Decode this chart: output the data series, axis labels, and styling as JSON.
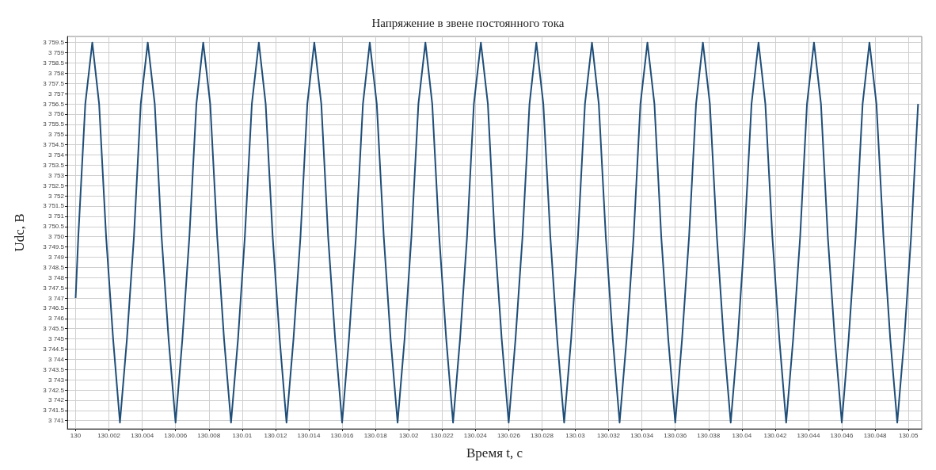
{
  "chart_data": {
    "type": "line",
    "title": "Напряжение в звене постоянного тока",
    "xlabel": "Время t, с",
    "ylabel": "Udc, В",
    "xlim": [
      129.9995,
      130.0508
    ],
    "xticks": [
      130,
      130.002,
      130.004,
      130.006,
      130.008,
      130.01,
      130.012,
      130.014,
      130.016,
      130.018,
      130.02,
      130.022,
      130.024,
      130.026,
      130.028,
      130.03,
      130.032,
      130.034,
      130.036,
      130.038,
      130.04,
      130.042,
      130.044,
      130.046,
      130.048,
      130.05
    ],
    "ylim": [
      3740.6,
      3759.8
    ],
    "yticks": [
      {
        "value": 3741,
        "label": "3 741"
      },
      {
        "value": 3741.5,
        "label": "3 741.5"
      },
      {
        "value": 3742,
        "label": "3 742"
      },
      {
        "value": 3742.5,
        "label": "3 742.5"
      },
      {
        "value": 3743,
        "label": "3 743"
      },
      {
        "value": 3743.5,
        "label": "3 743.5"
      },
      {
        "value": 3744,
        "label": "3 744"
      },
      {
        "value": 3744.5,
        "label": "3 744.5"
      },
      {
        "value": 3745,
        "label": "3 745"
      },
      {
        "value": 3745.5,
        "label": "3 745.5"
      },
      {
        "value": 3746,
        "label": "3 746"
      },
      {
        "value": 3746.5,
        "label": "3 746.5"
      },
      {
        "value": 3747,
        "label": "3 747"
      },
      {
        "value": 3747.5,
        "label": "3 747.5"
      },
      {
        "value": 3748,
        "label": "3 748"
      },
      {
        "value": 3748.5,
        "label": "3 748.5"
      },
      {
        "value": 3749,
        "label": "3 749"
      },
      {
        "value": 3749.5,
        "label": "3 749.5"
      },
      {
        "value": 3750,
        "label": "3 750"
      },
      {
        "value": 3750.5,
        "label": "3 750.5"
      },
      {
        "value": 3751,
        "label": "3 751"
      },
      {
        "value": 3751.5,
        "label": "3 751.5"
      },
      {
        "value": 3752,
        "label": "3 752"
      },
      {
        "value": 3752.5,
        "label": "3 752.5"
      },
      {
        "value": 3753,
        "label": "3 753"
      },
      {
        "value": 3753.5,
        "label": "3 753.5"
      },
      {
        "value": 3754,
        "label": "3 754"
      },
      {
        "value": 3754.5,
        "label": "3 754.5"
      },
      {
        "value": 3755,
        "label": "3 755"
      },
      {
        "value": 3755.5,
        "label": "3 755.5"
      },
      {
        "value": 3756,
        "label": "3 756"
      },
      {
        "value": 3756.5,
        "label": "3 756.5"
      },
      {
        "value": 3757,
        "label": "3 757"
      },
      {
        "value": 3757.5,
        "label": "3 757.5"
      },
      {
        "value": 3758,
        "label": "3 758"
      },
      {
        "value": 3758.5,
        "label": "3 758.5"
      },
      {
        "value": 3759,
        "label": "3 759"
      },
      {
        "value": 3759.5,
        "label": "3 759.5"
      }
    ],
    "grid": true,
    "marker": "none",
    "line_style": "solid",
    "series": [
      {
        "color": "#1f4e79",
        "x": [
          130,
          130.00016,
          130.00058,
          130.001,
          130.00141,
          130.00183,
          130.00225,
          130.00266,
          130.00308,
          130.0035,
          130.00391,
          130.00433,
          130.00475,
          130.00516,
          130.00558,
          130.006,
          130.00641,
          130.00683,
          130.00725,
          130.00766,
          130.00808,
          130.0085,
          130.00891,
          130.00933,
          130.00975,
          130.01016,
          130.01058,
          130.011,
          130.01141,
          130.01183,
          130.01225,
          130.01266,
          130.01308,
          130.0135,
          130.01391,
          130.01433,
          130.01475,
          130.01516,
          130.01558,
          130.016,
          130.01641,
          130.01683,
          130.01725,
          130.01766,
          130.01808,
          130.0185,
          130.01891,
          130.01933,
          130.01975,
          130.02016,
          130.02058,
          130.021,
          130.02141,
          130.02183,
          130.02225,
          130.02266,
          130.02308,
          130.0235,
          130.02391,
          130.02433,
          130.02475,
          130.02516,
          130.02558,
          130.026,
          130.02641,
          130.02683,
          130.02725,
          130.02766,
          130.02808,
          130.0285,
          130.02891,
          130.02933,
          130.02975,
          130.03016,
          130.03058,
          130.031,
          130.03141,
          130.03183,
          130.03225,
          130.03266,
          130.03308,
          130.0335,
          130.03391,
          130.03433,
          130.03475,
          130.03516,
          130.03558,
          130.036,
          130.03641,
          130.03683,
          130.03725,
          130.03766,
          130.03808,
          130.0385,
          130.03891,
          130.03933,
          130.03975,
          130.04016,
          130.04058,
          130.041,
          130.04141,
          130.04183,
          130.04225,
          130.04266,
          130.04308,
          130.0435,
          130.04391,
          130.04433,
          130.04475,
          130.04516,
          130.04558,
          130.046,
          130.04641,
          130.04683,
          130.04725,
          130.04766,
          130.04808,
          130.0485,
          130.04891,
          130.04933,
          130.04975,
          130.05016,
          130.05058
        ],
        "values": [
          3747,
          3750,
          3756.5,
          3759.5,
          3756.5,
          3750,
          3745,
          3740.9,
          3745,
          3750,
          3756.5,
          3759.5,
          3756.5,
          3750,
          3745,
          3740.9,
          3745,
          3750,
          3756.5,
          3759.5,
          3756.5,
          3750,
          3745,
          3740.9,
          3745,
          3750,
          3756.5,
          3759.5,
          3756.5,
          3750,
          3745,
          3740.9,
          3745,
          3750,
          3756.5,
          3759.5,
          3756.5,
          3750,
          3745,
          3740.9,
          3745,
          3750,
          3756.5,
          3759.5,
          3756.5,
          3750,
          3745,
          3740.9,
          3745,
          3750,
          3756.5,
          3759.5,
          3756.5,
          3750,
          3745,
          3740.9,
          3745,
          3750,
          3756.5,
          3759.5,
          3756.5,
          3750,
          3745,
          3740.9,
          3745,
          3750,
          3756.5,
          3759.5,
          3756.5,
          3750,
          3745,
          3740.9,
          3745,
          3750,
          3756.5,
          3759.5,
          3756.5,
          3750,
          3745,
          3740.9,
          3745,
          3750,
          3756.5,
          3759.5,
          3756.5,
          3750,
          3745,
          3740.9,
          3745,
          3750,
          3756.5,
          3759.5,
          3756.5,
          3750,
          3745,
          3740.9,
          3745,
          3750,
          3756.5,
          3759.5,
          3756.5,
          3750,
          3745,
          3740.9,
          3745,
          3750,
          3756.5,
          3759.5,
          3756.5,
          3750,
          3745,
          3740.9,
          3745,
          3750,
          3756.5,
          3759.5,
          3756.5,
          3750,
          3745,
          3740.9,
          3745,
          3750,
          3756.5
        ]
      }
    ]
  }
}
